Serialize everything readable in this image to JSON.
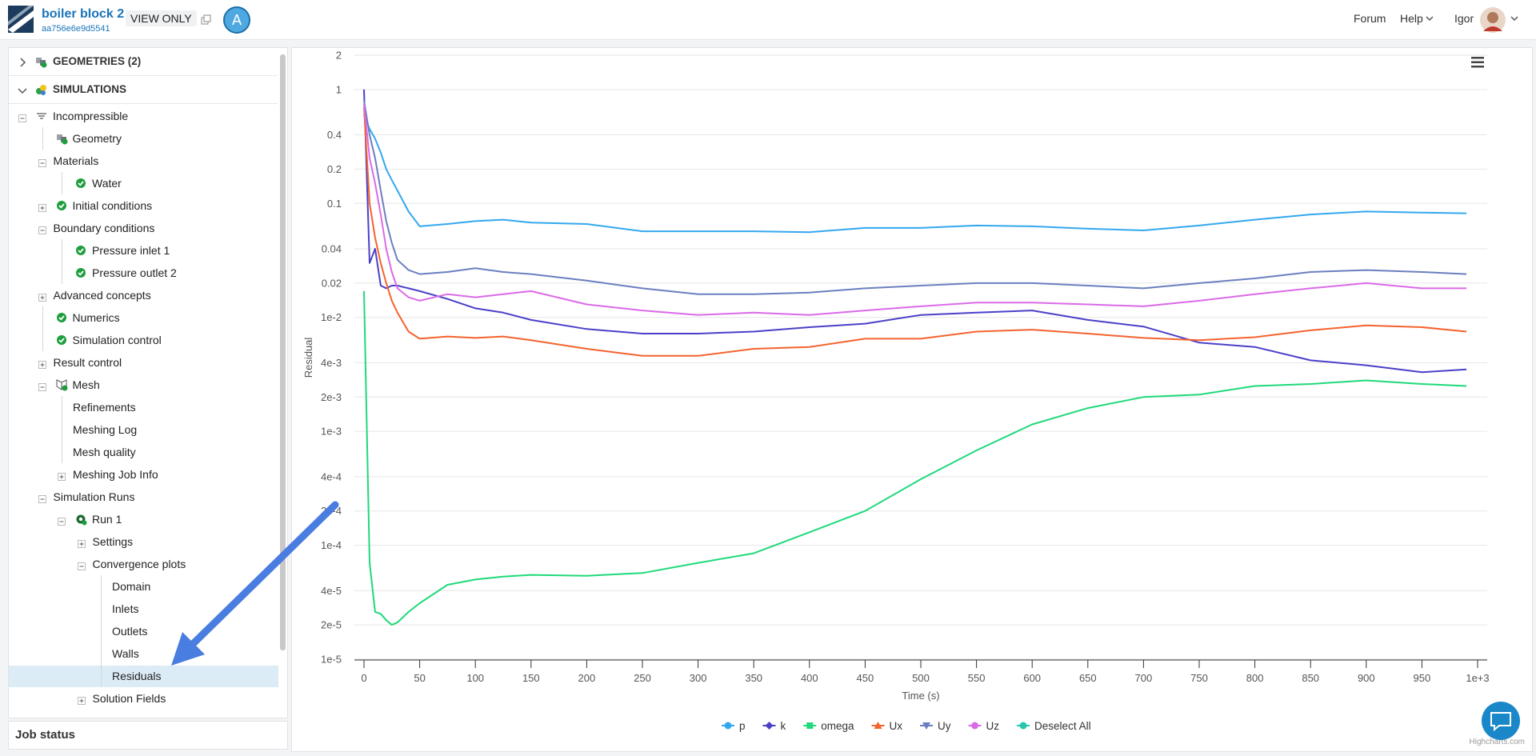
{
  "header": {
    "project": "boiler block 2",
    "project_id": "aa756e6e9d5541",
    "badge": "VIEW ONLY",
    "avatar": "A",
    "nav": [
      "Forum",
      "Help",
      "Igor"
    ]
  },
  "sidebar": {
    "sections": [
      {
        "label": "GEOMETRIES (2)",
        "collapsed": true,
        "icon": "geometry"
      },
      {
        "label": "SIMULATIONS",
        "icon": "simulation",
        "children": [
          {
            "label": "Incompressible",
            "icon": "physics",
            "children": [
              {
                "label": "Geometry",
                "icon": "geometry"
              },
              {
                "label": "Materials",
                "children": [
                  {
                    "label": "Water",
                    "icon": "check"
                  }
                ]
              },
              {
                "label": "Initial conditions",
                "icon": "check",
                "collapsed": true
              },
              {
                "label": "Boundary conditions",
                "children": [
                  {
                    "label": "Pressure inlet 1",
                    "icon": "check"
                  },
                  {
                    "label": "Pressure outlet 2",
                    "icon": "check"
                  }
                ]
              },
              {
                "label": "Advanced concepts",
                "collapsed": true
              },
              {
                "label": "Numerics",
                "icon": "check"
              },
              {
                "label": "Simulation control",
                "icon": "check"
              },
              {
                "label": "Result control",
                "collapsed": true
              },
              {
                "label": "Mesh",
                "icon": "mesh",
                "children": [
                  {
                    "label": "Refinements"
                  },
                  {
                    "label": "Meshing Log"
                  },
                  {
                    "label": "Mesh quality"
                  },
                  {
                    "label": "Meshing Job Info",
                    "collapsed": true
                  }
                ]
              },
              {
                "label": "Simulation Runs",
                "children": [
                  {
                    "label": "Run 1",
                    "icon": "run",
                    "children": [
                      {
                        "label": "Settings",
                        "collapsed": true
                      },
                      {
                        "label": "Convergence plots",
                        "children": [
                          {
                            "label": "Domain"
                          },
                          {
                            "label": "Inlets"
                          },
                          {
                            "label": "Outlets"
                          },
                          {
                            "label": "Walls"
                          },
                          {
                            "label": "Residuals",
                            "selected": true
                          }
                        ]
                      },
                      {
                        "label": "Solution Fields",
                        "collapsed": true
                      }
                    ]
                  }
                ]
              }
            ]
          }
        ]
      }
    ],
    "job_status": "Job status"
  },
  "chart_data": {
    "type": "line",
    "log_y": true,
    "grid": true,
    "ylabel": "Residual",
    "xlabel": "Time (s)",
    "credits": "Highcharts.com",
    "x": [
      0,
      5,
      10,
      15,
      20,
      25,
      30,
      40,
      50,
      75,
      100,
      125,
      150,
      200,
      250,
      300,
      350,
      400,
      450,
      500,
      550,
      600,
      650,
      700,
      750,
      800,
      850,
      900,
      950,
      990
    ],
    "series": [
      {
        "name": "p",
        "color": "#33a8ef",
        "symbol": "circle",
        "values": [
          0.6,
          0.45,
          0.37,
          0.28,
          0.2,
          0.16,
          0.13,
          0.085,
          0.063,
          0.066,
          0.07,
          0.072,
          0.068,
          0.066,
          0.057,
          0.057,
          0.057,
          0.056,
          0.061,
          0.061,
          0.064,
          0.063,
          0.06,
          0.058,
          0.064,
          0.072,
          0.08,
          0.085,
          0.083,
          0.082
        ]
      },
      {
        "name": "k",
        "color": "#4a40c8",
        "symbol": "diamond",
        "values": [
          1,
          0.03,
          0.04,
          0.019,
          0.018,
          0.019,
          0.019,
          0.018,
          0.017,
          0.0145,
          0.012,
          0.011,
          0.0095,
          0.0079,
          0.0072,
          0.0072,
          0.0075,
          0.0082,
          0.0088,
          0.0105,
          0.011,
          0.0115,
          0.0095,
          0.0083,
          0.006,
          0.0055,
          0.0042,
          0.0038,
          0.0033,
          0.0035
        ]
      },
      {
        "name": "omega",
        "color": "#1fd97a",
        "symbol": "square",
        "values": [
          0.017,
          7e-05,
          2.6e-05,
          2.5e-05,
          2.2e-05,
          2e-05,
          2.1e-05,
          2.6e-05,
          3.1e-05,
          4.5e-05,
          5e-05,
          5.3e-05,
          5.5e-05,
          5.4e-05,
          5.7e-05,
          7e-05,
          8.5e-05,
          0.00013,
          0.0002,
          0.00038,
          0.00068,
          0.00115,
          0.0016,
          0.002,
          0.0021,
          0.0025,
          0.0026,
          0.0028,
          0.0026,
          0.0025
        ]
      },
      {
        "name": "Ux",
        "color": "#f4632e",
        "symbol": "triangle",
        "values": [
          0.7,
          0.1,
          0.05,
          0.03,
          0.02,
          0.014,
          0.011,
          0.0075,
          0.0065,
          0.0068,
          0.0066,
          0.0068,
          0.0063,
          0.0053,
          0.0046,
          0.0046,
          0.0053,
          0.0055,
          0.0065,
          0.0065,
          0.0075,
          0.0078,
          0.0072,
          0.0066,
          0.0063,
          0.0067,
          0.0077,
          0.0085,
          0.0082,
          0.0075
        ]
      },
      {
        "name": "Uy",
        "color": "#6b7fc0",
        "symbol": "triangle-down",
        "values": [
          0.8,
          0.4,
          0.25,
          0.13,
          0.07,
          0.045,
          0.032,
          0.026,
          0.024,
          0.025,
          0.027,
          0.025,
          0.024,
          0.021,
          0.018,
          0.016,
          0.016,
          0.0165,
          0.018,
          0.019,
          0.02,
          0.02,
          0.019,
          0.018,
          0.02,
          0.022,
          0.025,
          0.026,
          0.025,
          0.024
        ]
      },
      {
        "name": "Uz",
        "color": "#db6ae8",
        "symbol": "circle",
        "values": [
          0.75,
          0.25,
          0.15,
          0.08,
          0.04,
          0.025,
          0.018,
          0.015,
          0.014,
          0.016,
          0.015,
          0.016,
          0.017,
          0.013,
          0.0115,
          0.0105,
          0.011,
          0.0105,
          0.0115,
          0.0125,
          0.0135,
          0.0135,
          0.013,
          0.0125,
          0.014,
          0.016,
          0.018,
          0.02,
          0.018,
          0.018
        ]
      }
    ],
    "legend_action": {
      "label": "Deselect All",
      "color": "#26c6b0"
    },
    "xlim": [
      0,
      1000
    ],
    "xticks": [
      0,
      50,
      100,
      150,
      200,
      250,
      300,
      350,
      400,
      450,
      500,
      550,
      600,
      650,
      700,
      750,
      800,
      850,
      900,
      950,
      {
        "value": 1000,
        "label": "1e+3"
      }
    ],
    "ylim": [
      1e-05,
      2
    ],
    "yticks": [
      {
        "value": 1e-05,
        "label": "1e-5"
      },
      {
        "value": 2e-05,
        "label": "2e-5"
      },
      {
        "value": 4e-05,
        "label": "4e-5"
      },
      {
        "value": 0.0001,
        "label": "1e-4"
      },
      {
        "value": 0.0002,
        "label": "2e-4"
      },
      {
        "value": 0.0004,
        "label": "4e-4"
      },
      {
        "value": 0.001,
        "label": "1e-3"
      },
      {
        "value": 0.002,
        "label": "2e-3"
      },
      {
        "value": 0.004,
        "label": "4e-3"
      },
      {
        "value": 0.01,
        "label": "1e-2"
      },
      0.02,
      0.04,
      0.1,
      0.2,
      0.4,
      1,
      2
    ]
  }
}
